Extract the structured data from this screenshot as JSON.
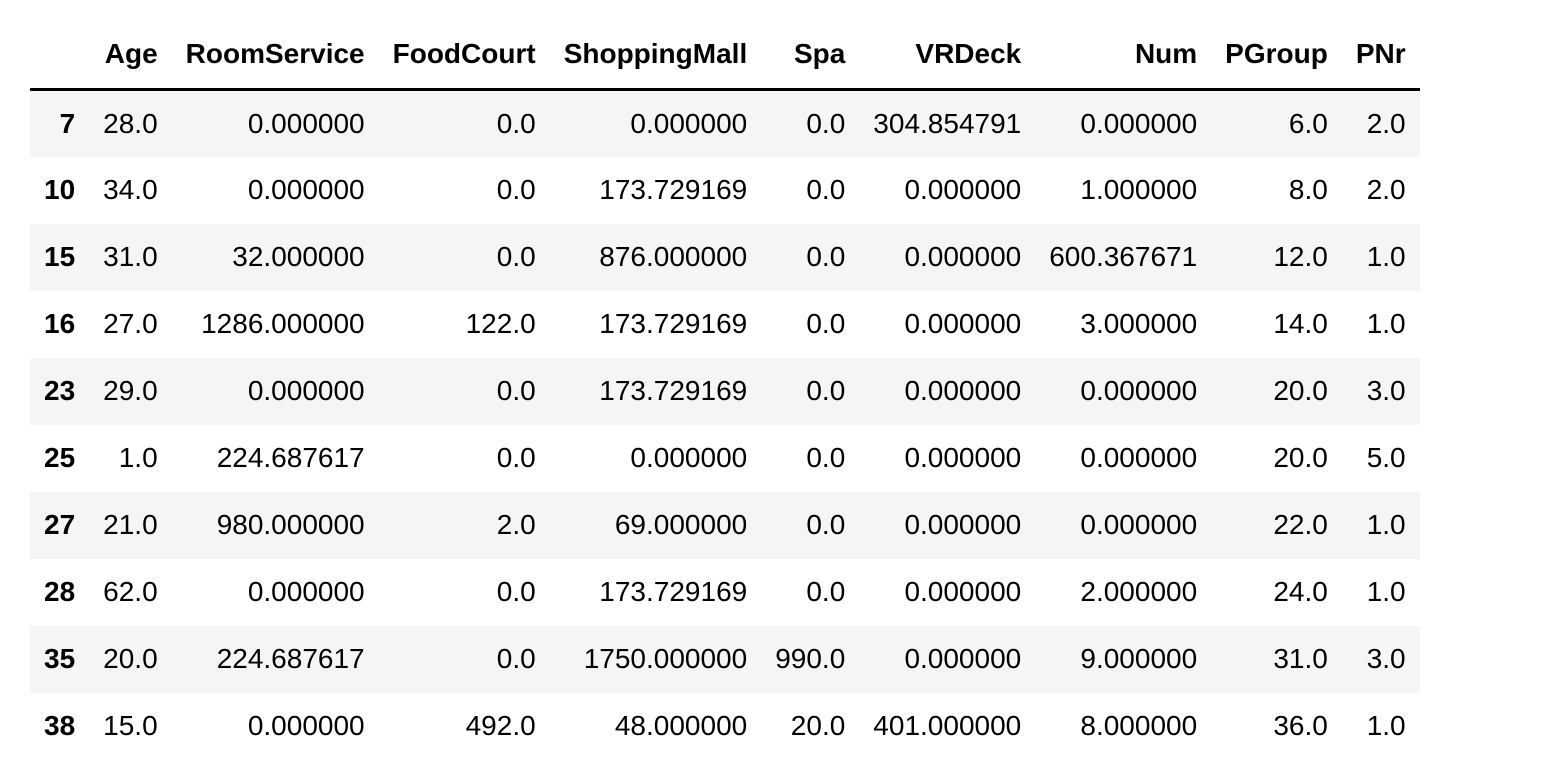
{
  "table": {
    "name": "dataframe-output",
    "index_header": "",
    "columns": [
      "Age",
      "RoomService",
      "FoodCourt",
      "ShoppingMall",
      "Spa",
      "VRDeck",
      "Num",
      "PGroup",
      "PNr"
    ],
    "rows": [
      {
        "index": "7",
        "cells": [
          "28.0",
          "0.000000",
          "0.0",
          "0.000000",
          "0.0",
          "304.854791",
          "0.000000",
          "6.0",
          "2.0"
        ]
      },
      {
        "index": "10",
        "cells": [
          "34.0",
          "0.000000",
          "0.0",
          "173.729169",
          "0.0",
          "0.000000",
          "1.000000",
          "8.0",
          "2.0"
        ]
      },
      {
        "index": "15",
        "cells": [
          "31.0",
          "32.000000",
          "0.0",
          "876.000000",
          "0.0",
          "0.000000",
          "600.367671",
          "12.0",
          "1.0"
        ]
      },
      {
        "index": "16",
        "cells": [
          "27.0",
          "1286.000000",
          "122.0",
          "173.729169",
          "0.0",
          "0.000000",
          "3.000000",
          "14.0",
          "1.0"
        ]
      },
      {
        "index": "23",
        "cells": [
          "29.0",
          "0.000000",
          "0.0",
          "173.729169",
          "0.0",
          "0.000000",
          "0.000000",
          "20.0",
          "3.0"
        ]
      },
      {
        "index": "25",
        "cells": [
          "1.0",
          "224.687617",
          "0.0",
          "0.000000",
          "0.0",
          "0.000000",
          "0.000000",
          "20.0",
          "5.0"
        ]
      },
      {
        "index": "27",
        "cells": [
          "21.0",
          "980.000000",
          "2.0",
          "69.000000",
          "0.0",
          "0.000000",
          "0.000000",
          "22.0",
          "1.0"
        ]
      },
      {
        "index": "28",
        "cells": [
          "62.0",
          "0.000000",
          "0.0",
          "173.729169",
          "0.0",
          "0.000000",
          "2.000000",
          "24.0",
          "1.0"
        ]
      },
      {
        "index": "35",
        "cells": [
          "20.0",
          "224.687617",
          "0.0",
          "1750.000000",
          "990.0",
          "0.000000",
          "9.000000",
          "31.0",
          "3.0"
        ]
      },
      {
        "index": "38",
        "cells": [
          "15.0",
          "0.000000",
          "492.0",
          "48.000000",
          "20.0",
          "401.000000",
          "8.000000",
          "36.0",
          "1.0"
        ]
      }
    ]
  },
  "colors": {
    "background": "#ffffff",
    "row_stripe": "#f5f5f5",
    "header_rule": "#000000",
    "text": "#000000"
  }
}
